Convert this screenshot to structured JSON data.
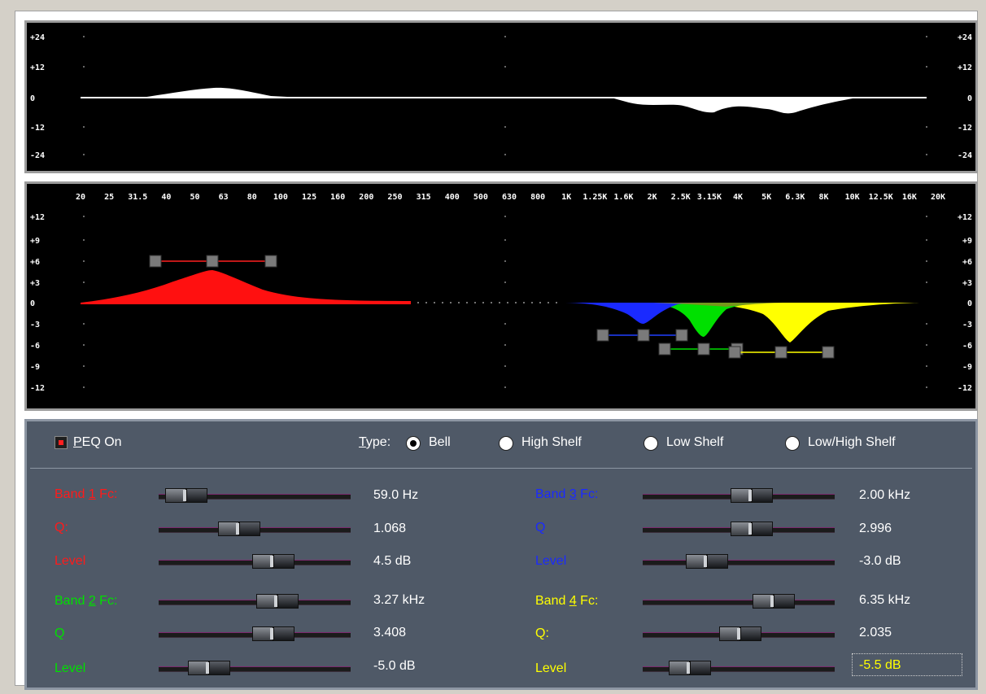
{
  "colors": {
    "band1": "#ff1a1a",
    "band2": "#00e000",
    "band3": "#1a2aff",
    "band4": "#ffff00",
    "panel_bg": "#4f5967"
  },
  "response_scale": {
    "left_labels": [
      "+24",
      "+12",
      "0",
      "-12",
      "-24"
    ],
    "right_labels": [
      "+24",
      "+12",
      "0",
      "-12",
      "-24"
    ]
  },
  "eq_scale": {
    "left_labels": [
      "+12",
      "+9",
      "+6",
      "+3",
      "0",
      "-3",
      "-6",
      "-9",
      "-12"
    ],
    "right_labels": [
      "+12",
      "+9",
      "+6",
      "+3",
      "0",
      "-3",
      "-6",
      "-9",
      "-12"
    ],
    "freq_labels": [
      "20",
      "25",
      "31.5",
      "40",
      "50",
      "63",
      "80",
      "100",
      "125",
      "160",
      "200",
      "250",
      "315",
      "400",
      "500",
      "630",
      "800",
      "1K",
      "1.25K",
      "1.6K",
      "2K",
      "2.5K",
      "3.15K",
      "4K",
      "5K",
      "6.3K",
      "8K",
      "10K",
      "12.5K",
      "16K",
      "20K"
    ]
  },
  "controls": {
    "peq_on": {
      "prefix": "",
      "key": "P",
      "rest": "EQ On"
    },
    "type_label": {
      "key": "T",
      "rest": "ype:"
    },
    "types": [
      {
        "label": "Bell",
        "selected": true
      },
      {
        "label": "High Shelf",
        "selected": false
      },
      {
        "label": "Low Shelf",
        "selected": false
      },
      {
        "label": "Low/High Shelf",
        "selected": false
      }
    ]
  },
  "bands": {
    "band1": {
      "fc_label": {
        "pre": "Band ",
        "key": "1",
        "post": " Fc:"
      },
      "q_label": "Q:",
      "level_label": "Level",
      "fc_value": "59.0 Hz",
      "q_value": "1.068",
      "level_value": "4.5 dB",
      "fc_pos": 0.0,
      "q_pos": 0.38,
      "level_pos": 0.62
    },
    "band2": {
      "fc_label": {
        "pre": "Band ",
        "key": "2",
        "post": " Fc:"
      },
      "q_label": "Q",
      "level_label": "Level",
      "fc_value": "3.27 kHz",
      "q_value": "3.408",
      "level_value": "-5.0 dB",
      "fc_pos": 0.65,
      "q_pos": 0.62,
      "level_pos": 0.16
    },
    "band3": {
      "fc_label": {
        "pre": "Band ",
        "key": "3",
        "post": " Fc:"
      },
      "q_label": "Q",
      "level_label": "Level",
      "fc_value": "2.00 kHz",
      "q_value": "2.996",
      "level_value": "-3.0 dB",
      "fc_pos": 0.58,
      "q_pos": 0.58,
      "level_pos": 0.26
    },
    "band4": {
      "fc_label": {
        "pre": "Band ",
        "key": "4",
        "post": " Fc:"
      },
      "q_label": "Q:",
      "level_label": "Level",
      "fc_value": "6.35 kHz",
      "q_value": "2.035",
      "level_value": "-5.5 dB",
      "fc_pos": 0.74,
      "q_pos": 0.5,
      "level_pos": 0.14
    }
  }
}
